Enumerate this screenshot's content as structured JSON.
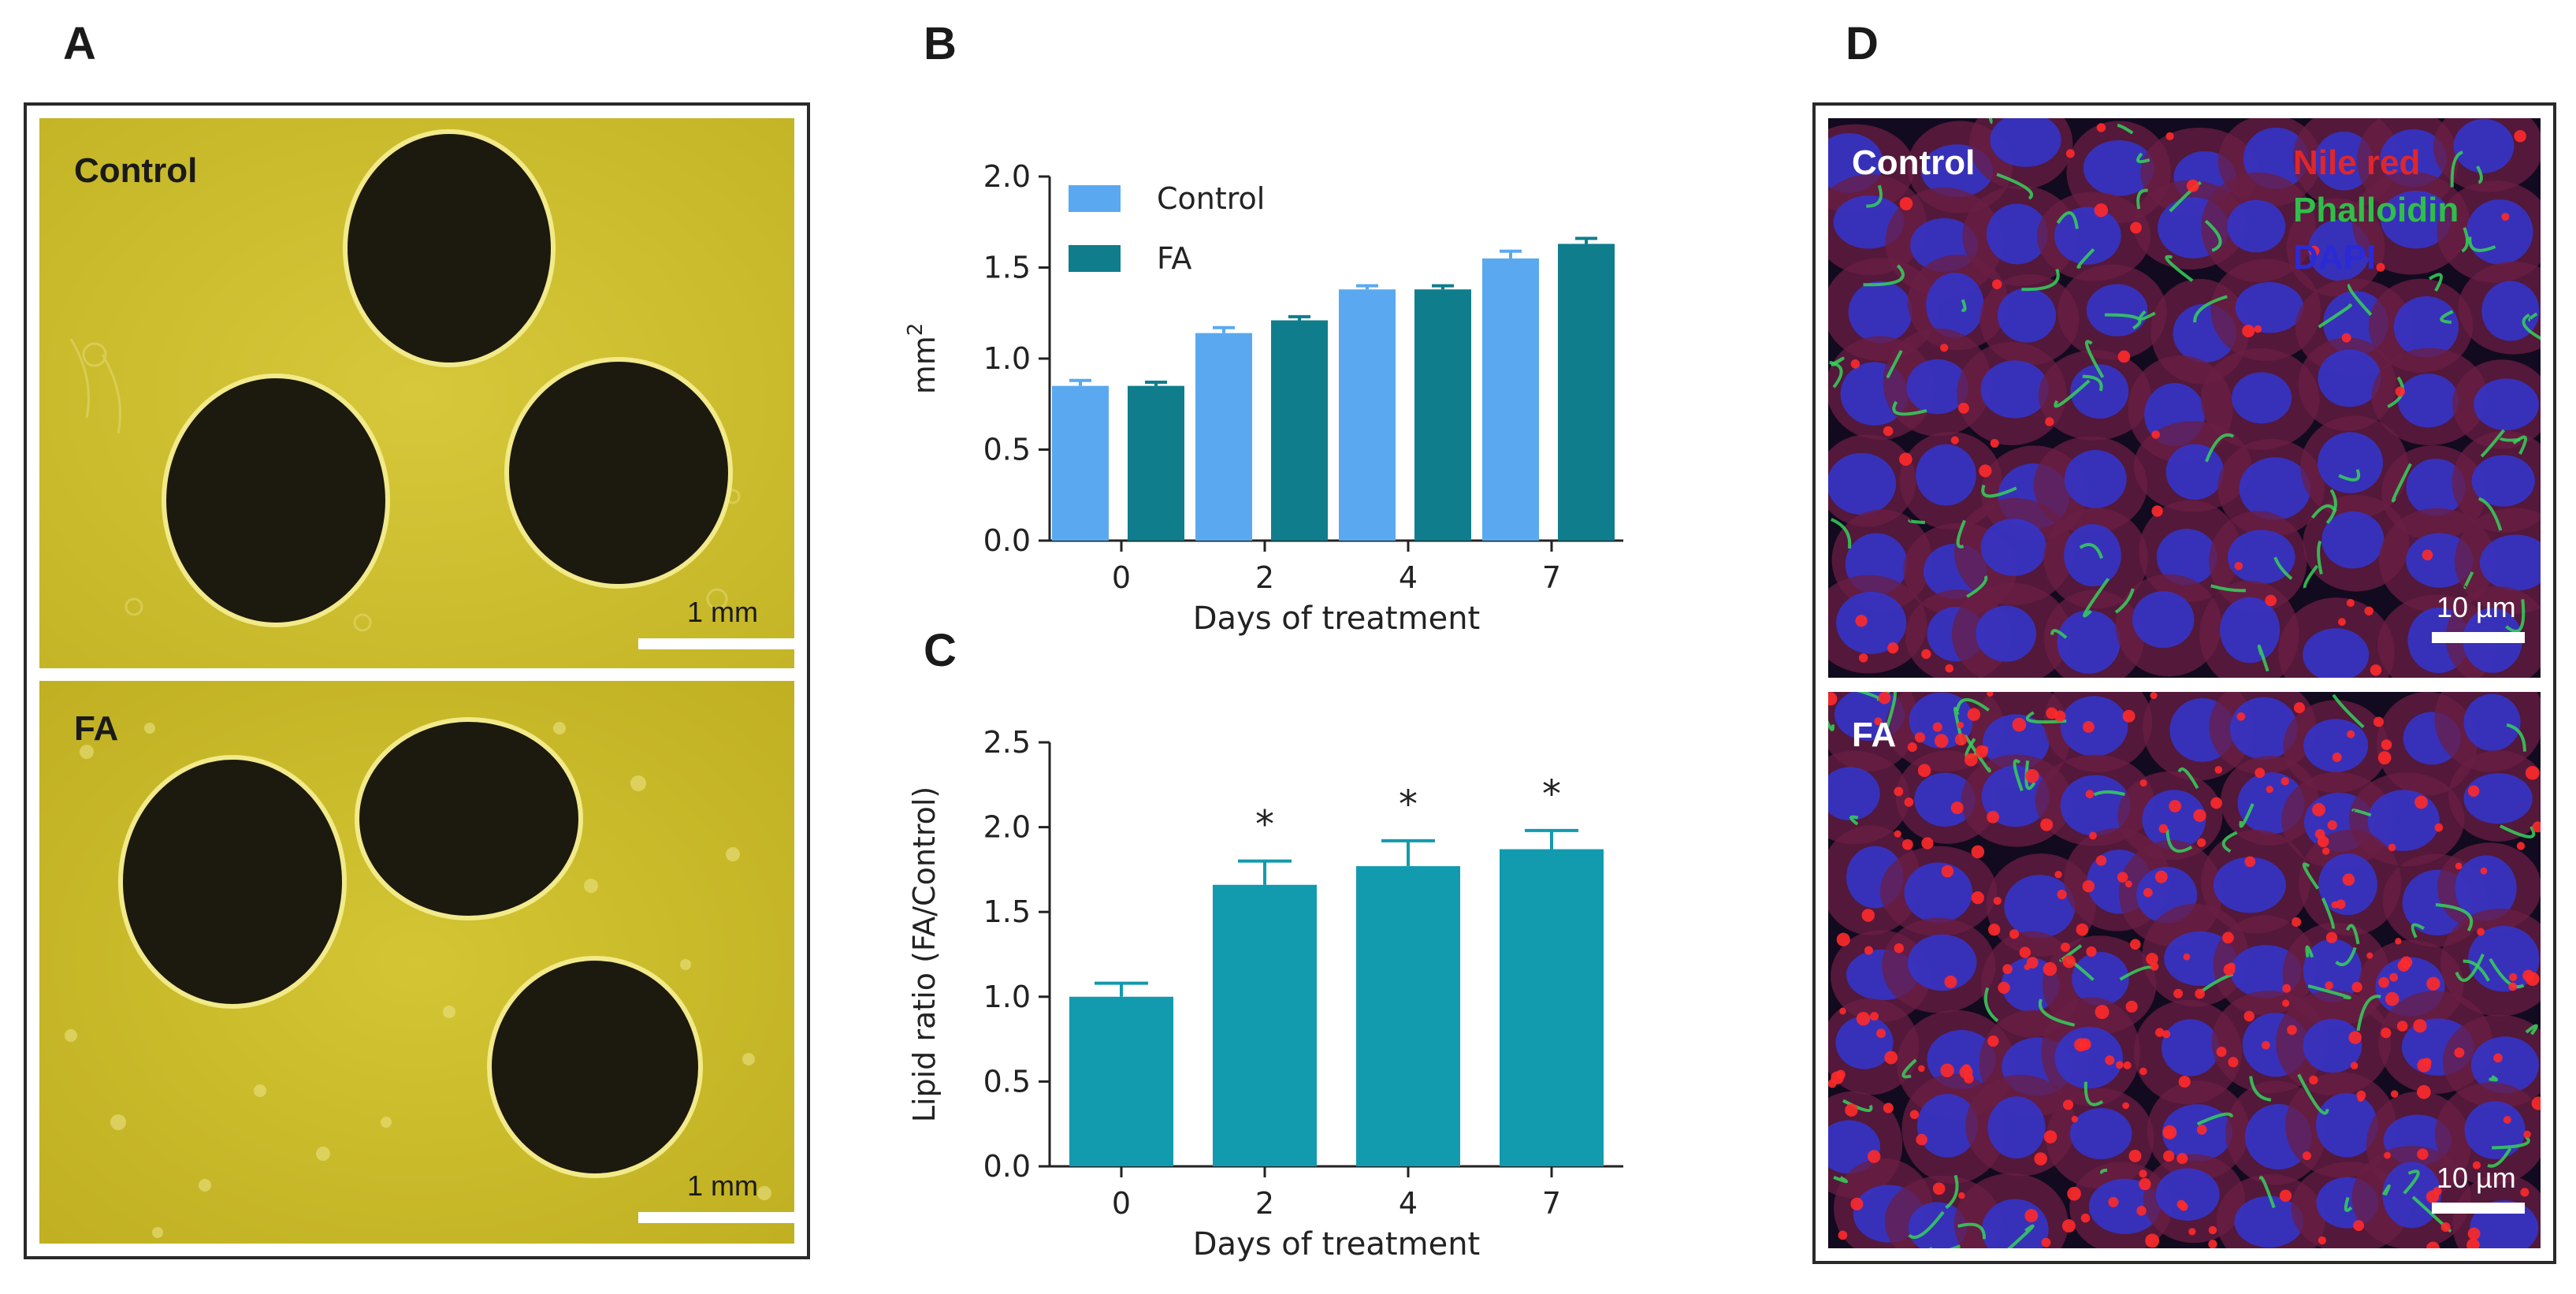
{
  "figure": {
    "panel_letters": {
      "a": "A",
      "b": "B",
      "c": "C",
      "d": "D"
    }
  },
  "panel_a": {
    "top_label": "Control",
    "bottom_label": "FA",
    "scale_label": "1 mm",
    "colors": {
      "background": "#cfc02e",
      "spheroid": "#1c1a0e",
      "rim": "#f2ea8a"
    }
  },
  "panel_d": {
    "top_label": "Control",
    "bottom_label": "FA",
    "scale_label": "10 µm",
    "legend": [
      {
        "label": "Nile red",
        "color": "#e0262a"
      },
      {
        "label": "Phalloidin",
        "color": "#2fbe4a"
      },
      {
        "label": "DAPI",
        "color": "#2a2ad6"
      }
    ]
  },
  "chart_data": [
    {
      "panel": "B",
      "type": "bar",
      "categories": [
        "0",
        "2",
        "4",
        "7"
      ],
      "series": [
        {
          "name": "Control",
          "color": "#5aa9f0",
          "values": [
            0.85,
            1.14,
            1.38,
            1.55
          ],
          "errors": [
            0.03,
            0.03,
            0.02,
            0.04
          ]
        },
        {
          "name": "FA",
          "color": "#0f7d8c",
          "values": [
            0.85,
            1.21,
            1.38,
            1.63
          ],
          "errors": [
            0.02,
            0.02,
            0.02,
            0.03
          ]
        }
      ],
      "xlabel": "Days of treatment",
      "ylabel": "mm",
      "ylabel_superscript": "2",
      "ylim": [
        0,
        2.0
      ],
      "yticks": [
        "0.0",
        "0.5",
        "1.0",
        "1.5",
        "2.0"
      ],
      "legend_position": "top-left",
      "grid": false
    },
    {
      "panel": "C",
      "type": "bar",
      "categories": [
        "0",
        "2",
        "4",
        "7"
      ],
      "series": [
        {
          "color": "#129aae",
          "values": [
            1.0,
            1.66,
            1.77,
            1.87
          ],
          "errors": [
            0.08,
            0.14,
            0.15,
            0.11
          ]
        }
      ],
      "annotations": [
        "",
        "*",
        "*",
        "*"
      ],
      "xlabel": "Days of treatment",
      "ylabel": "Lipid ratio (FA/Control)",
      "ylim": [
        0,
        2.5
      ],
      "yticks": [
        "0.0",
        "0.5",
        "1.0",
        "1.5",
        "2.0",
        "2.5"
      ],
      "grid": false
    }
  ]
}
